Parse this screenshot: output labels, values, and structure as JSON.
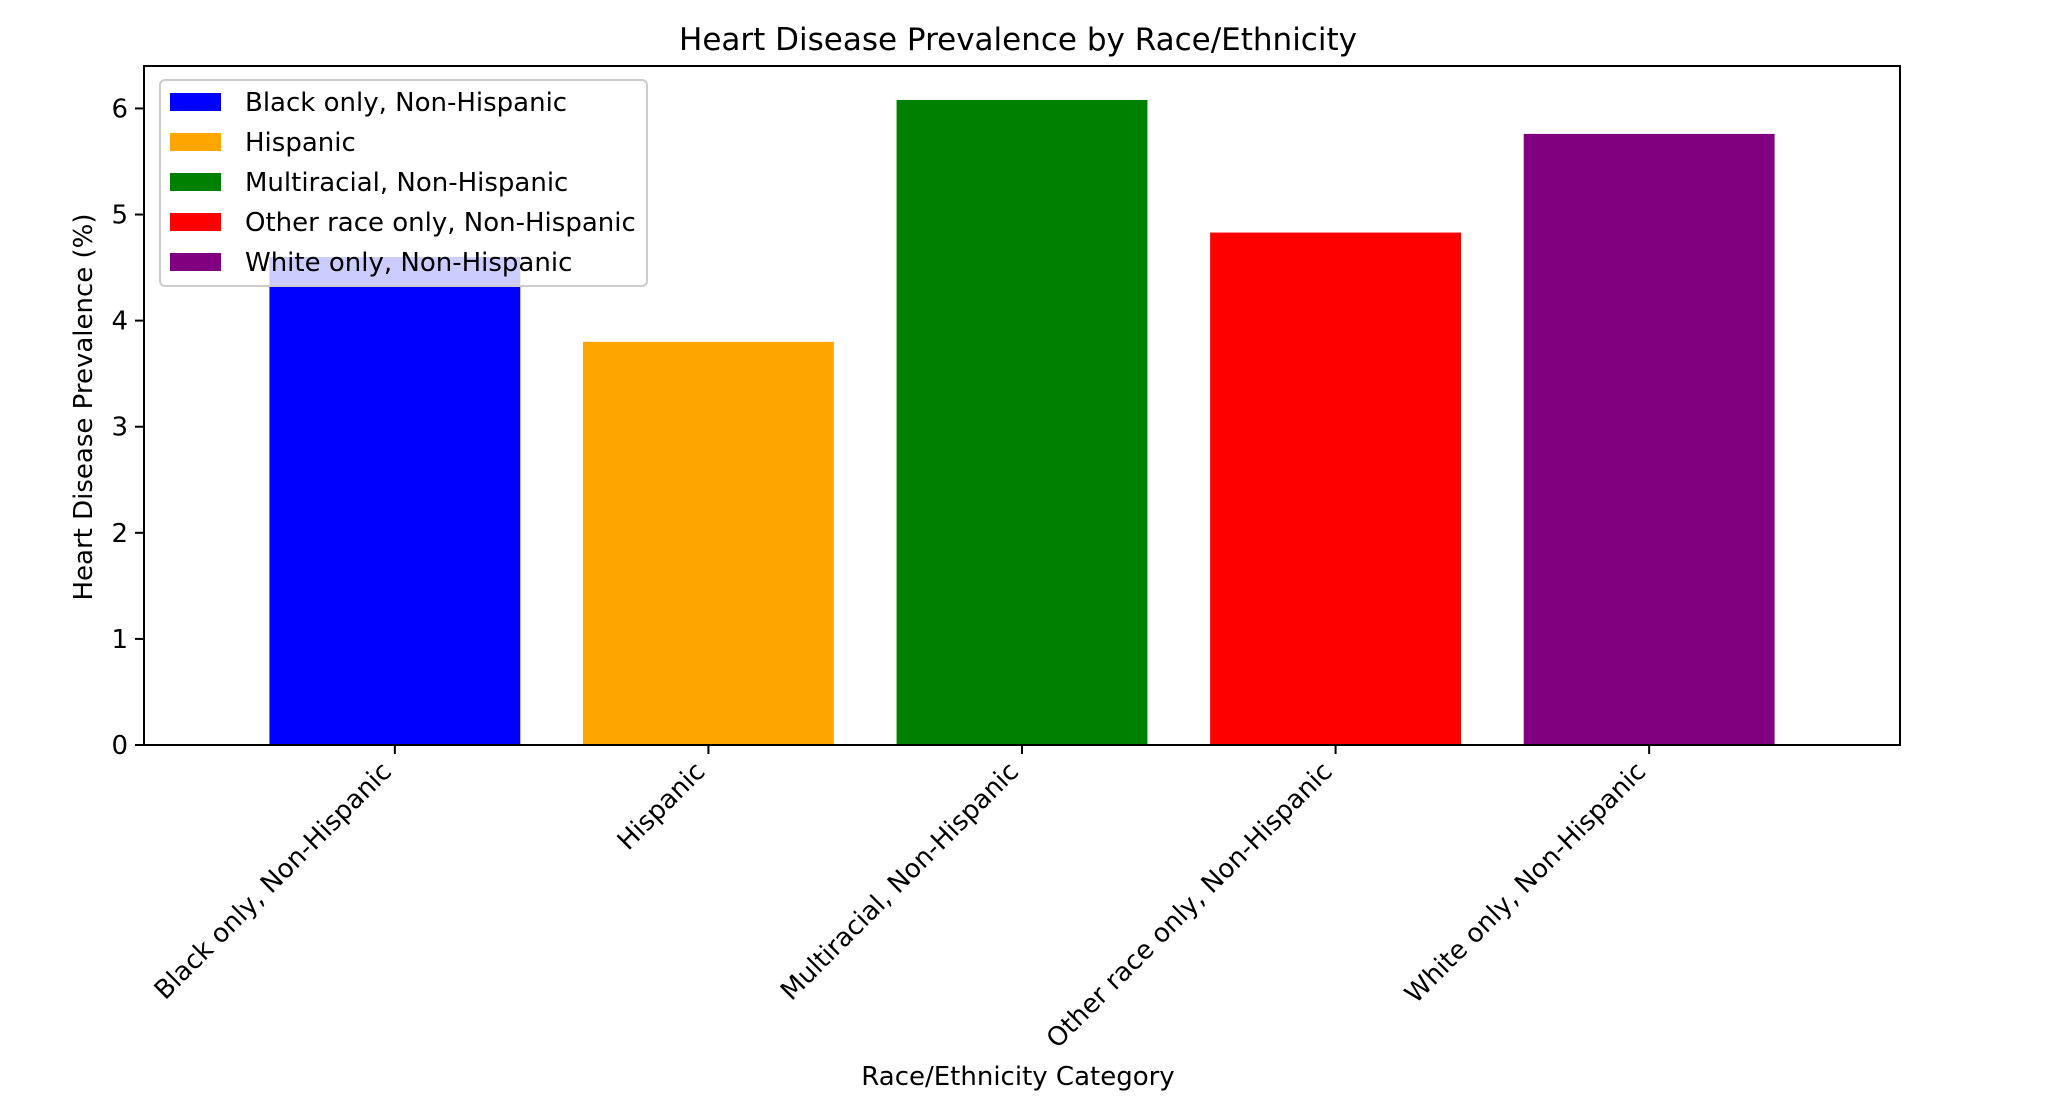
{
  "chart_data": {
    "type": "bar",
    "title": "Heart Disease Prevalence by Race/Ethnicity",
    "xlabel": "Race/Ethnicity Category",
    "ylabel": "Heart Disease Prevalence (%)",
    "categories": [
      "Black only, Non-Hispanic",
      "Hispanic",
      "Multiracial, Non-Hispanic",
      "Other race only, Non-Hispanic",
      "White only, Non-Hispanic"
    ],
    "values": [
      4.6,
      3.8,
      6.08,
      4.83,
      5.76
    ],
    "colors": [
      "#0000ff",
      "#ffa500",
      "#008000",
      "#ff0000",
      "#800080"
    ],
    "ylim": [
      0,
      6.4
    ],
    "yticks": [
      0,
      1,
      2,
      3,
      4,
      5,
      6
    ],
    "grid": false,
    "legend": {
      "placement": "top-left",
      "entries": [
        "Black only, Non-Hispanic",
        "Hispanic",
        "Multiracial, Non-Hispanic",
        "Other race only, Non-Hispanic",
        "White only, Non-Hispanic"
      ]
    }
  }
}
